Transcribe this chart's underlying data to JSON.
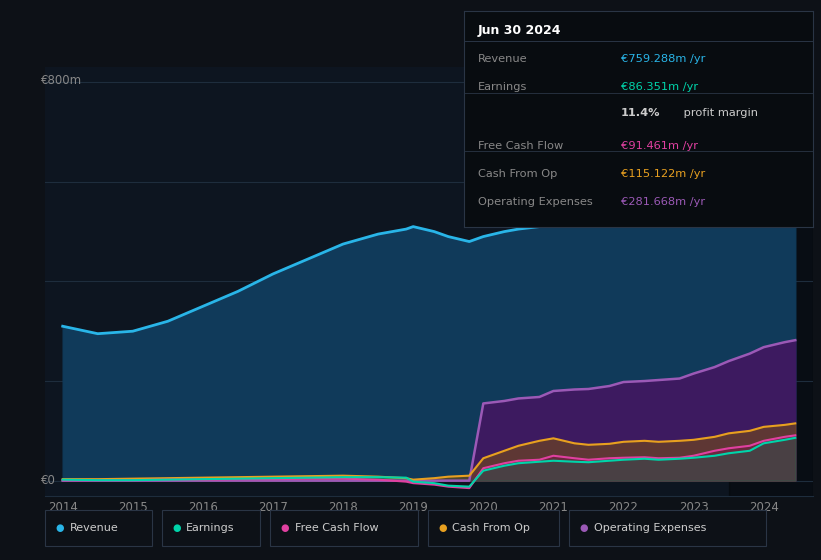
{
  "bg_color": "#0d1117",
  "chart_bg": "#0d1520",
  "grid_color": "#1e2d3d",
  "years": [
    2014.0,
    2014.5,
    2015.0,
    2015.5,
    2016.0,
    2016.5,
    2017.0,
    2017.5,
    2018.0,
    2018.5,
    2018.9,
    2019.0,
    2019.3,
    2019.5,
    2019.8,
    2020.0,
    2020.3,
    2020.5,
    2020.8,
    2021.0,
    2021.3,
    2021.5,
    2021.8,
    2022.0,
    2022.3,
    2022.5,
    2022.8,
    2023.0,
    2023.3,
    2023.5,
    2023.8,
    2024.0,
    2024.3,
    2024.45
  ],
  "revenue": [
    310,
    295,
    300,
    320,
    350,
    380,
    415,
    445,
    475,
    495,
    505,
    510,
    500,
    490,
    480,
    490,
    500,
    505,
    510,
    520,
    530,
    535,
    545,
    570,
    600,
    620,
    645,
    670,
    700,
    720,
    740,
    755,
    775,
    760
  ],
  "earnings": [
    2,
    1,
    1,
    2,
    3,
    4,
    5,
    6,
    7,
    7,
    6,
    -2,
    -5,
    -10,
    -12,
    20,
    30,
    35,
    38,
    40,
    38,
    37,
    40,
    42,
    44,
    42,
    44,
    46,
    50,
    55,
    60,
    75,
    82,
    86
  ],
  "free_cash_flow": [
    1,
    1,
    1,
    2,
    2,
    3,
    3,
    4,
    4,
    2,
    -2,
    -5,
    -8,
    -12,
    -15,
    25,
    35,
    40,
    42,
    50,
    45,
    42,
    45,
    46,
    47,
    45,
    46,
    50,
    60,
    65,
    70,
    80,
    88,
    91
  ],
  "cash_from_op": [
    3,
    3,
    4,
    5,
    6,
    7,
    8,
    9,
    10,
    8,
    5,
    2,
    5,
    8,
    10,
    45,
    60,
    70,
    80,
    85,
    75,
    72,
    74,
    78,
    80,
    78,
    80,
    82,
    88,
    95,
    100,
    108,
    112,
    115
  ],
  "operating_expenses": [
    0,
    0,
    0,
    0,
    0,
    0,
    0,
    0,
    0,
    0,
    0,
    0,
    0,
    0,
    0,
    155,
    160,
    165,
    168,
    180,
    183,
    184,
    190,
    198,
    200,
    202,
    205,
    215,
    228,
    240,
    255,
    268,
    278,
    282
  ],
  "revenue_color": "#29b5e8",
  "earnings_color": "#00d4aa",
  "fcf_color": "#e040a0",
  "cashop_color": "#e8a020",
  "opex_color": "#9b59b6",
  "revenue_fill": "#103a5a",
  "opex_fill": "#3d1a60",
  "info_bg": "#080c10",
  "info_border": "#2a3545",
  "info_title": "Jun 30 2024",
  "info_revenue_label": "Revenue",
  "info_revenue_value": "€759.288m /yr",
  "info_revenue_color": "#29b5e8",
  "info_earnings_label": "Earnings",
  "info_earnings_value": "€86.351m /yr",
  "info_earnings_color": "#00d4aa",
  "info_margin": "11.4% profit margin",
  "info_fcf_label": "Free Cash Flow",
  "info_fcf_value": "€91.461m /yr",
  "info_fcf_color": "#e040a0",
  "info_cashop_label": "Cash From Op",
  "info_cashop_value": "€115.122m /yr",
  "info_cashop_color": "#e8a020",
  "info_opex_label": "Operating Expenses",
  "info_opex_value": "€281.668m /yr",
  "info_opex_color": "#9b59b6",
  "ylabel_800": "€800m",
  "ylabel_0": "€0",
  "legend_items": [
    {
      "label": "Revenue",
      "color": "#29b5e8"
    },
    {
      "label": "Earnings",
      "color": "#00d4aa"
    },
    {
      "label": "Free Cash Flow",
      "color": "#e040a0"
    },
    {
      "label": "Cash From Op",
      "color": "#e8a020"
    },
    {
      "label": "Operating Expenses",
      "color": "#9b59b6"
    }
  ],
  "x_ticks": [
    2014,
    2015,
    2016,
    2017,
    2018,
    2019,
    2020,
    2021,
    2022,
    2023,
    2024
  ],
  "ylim": [
    -30,
    830
  ],
  "xlim": [
    2013.75,
    2024.7
  ],
  "dark_band_start": 2023.5,
  "dark_band_end": 2024.7
}
